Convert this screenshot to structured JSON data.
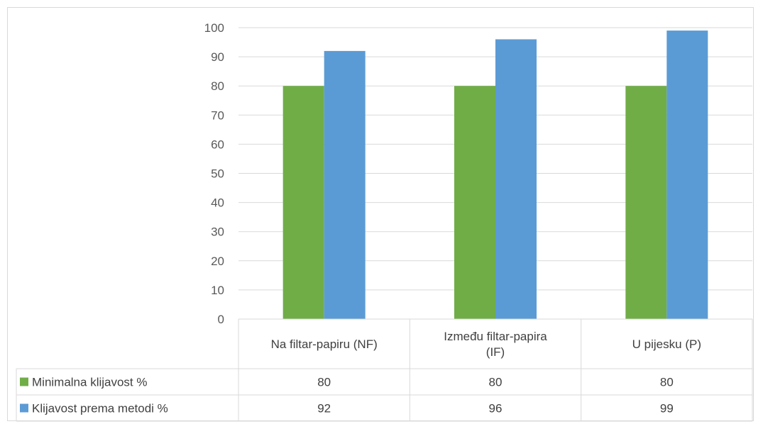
{
  "chart_data": {
    "type": "bar",
    "categories": [
      "Na filtar-papiru (NF)",
      "Između filtar-papira (IF)",
      "U pijesku (P)"
    ],
    "category_lines": [
      [
        "Na filtar-papiru (NF)"
      ],
      [
        "Između filtar-papira",
        "(IF)"
      ],
      [
        "U pijesku (P)"
      ]
    ],
    "series": [
      {
        "name": "Minimalna klijavost %",
        "values": [
          80,
          80,
          80
        ],
        "color": "#70ad47"
      },
      {
        "name": "Klijavost prema metodi %",
        "values": [
          92,
          96,
          99
        ],
        "color": "#5b9bd5"
      }
    ],
    "ylim": [
      0,
      100
    ],
    "yticks": [
      0,
      10,
      20,
      30,
      40,
      50,
      60,
      70,
      80,
      90,
      100
    ],
    "grid": true,
    "legend": "data-table",
    "data_table": true
  }
}
